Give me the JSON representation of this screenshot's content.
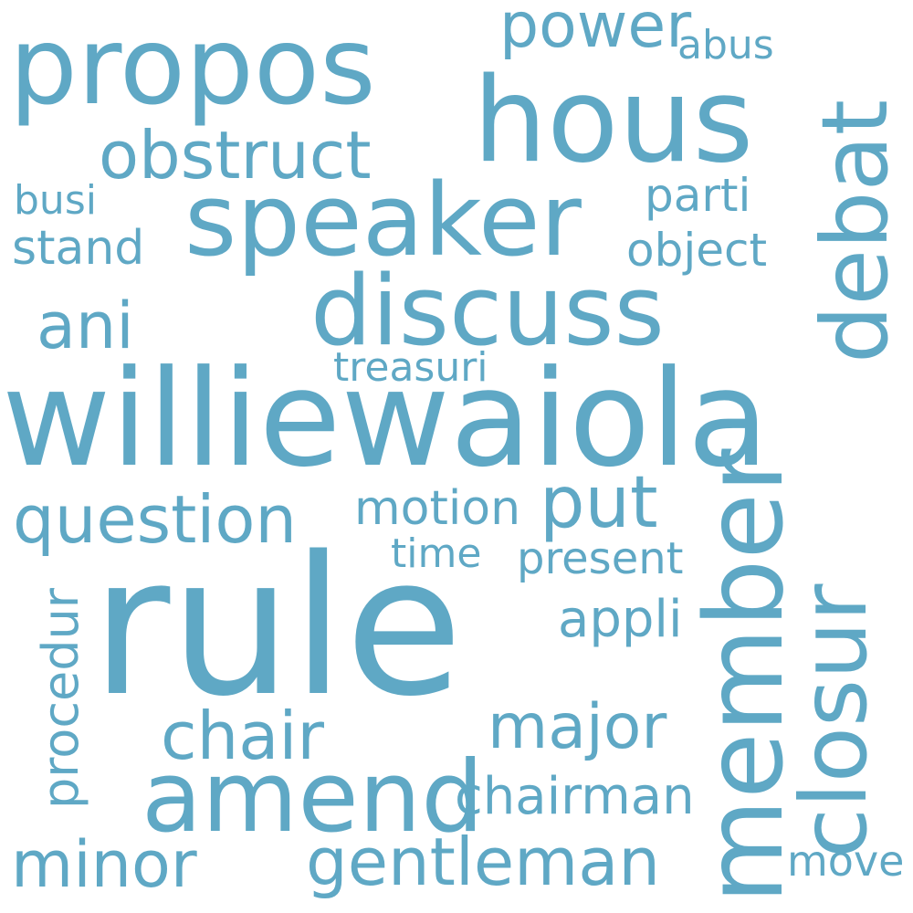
{
  "word_cloud": {
    "color": "#5fa8c5",
    "words": {
      "williewaiola": "williewaiola",
      "rule": "rule",
      "hous": "hous",
      "propos": "propos",
      "speaker": "speaker",
      "discuss": "discuss",
      "member": "member",
      "closur": "closur",
      "debat": "debat",
      "amend": "amend",
      "question": "question",
      "put": "put",
      "gentleman": "gentleman",
      "chair": "chair",
      "minor": "minor",
      "major": "major",
      "obstruct": "obstruct",
      "power": "power",
      "chairman": "chairman",
      "ani": "ani",
      "motion": "motion",
      "procedur": "procedur",
      "appli": "appli",
      "stand": "stand",
      "object": "object",
      "present": "present",
      "parti": "parti",
      "busi": "busi",
      "treasuri": "treasuri",
      "time": "time",
      "abus": "abus",
      "move": "move"
    }
  }
}
